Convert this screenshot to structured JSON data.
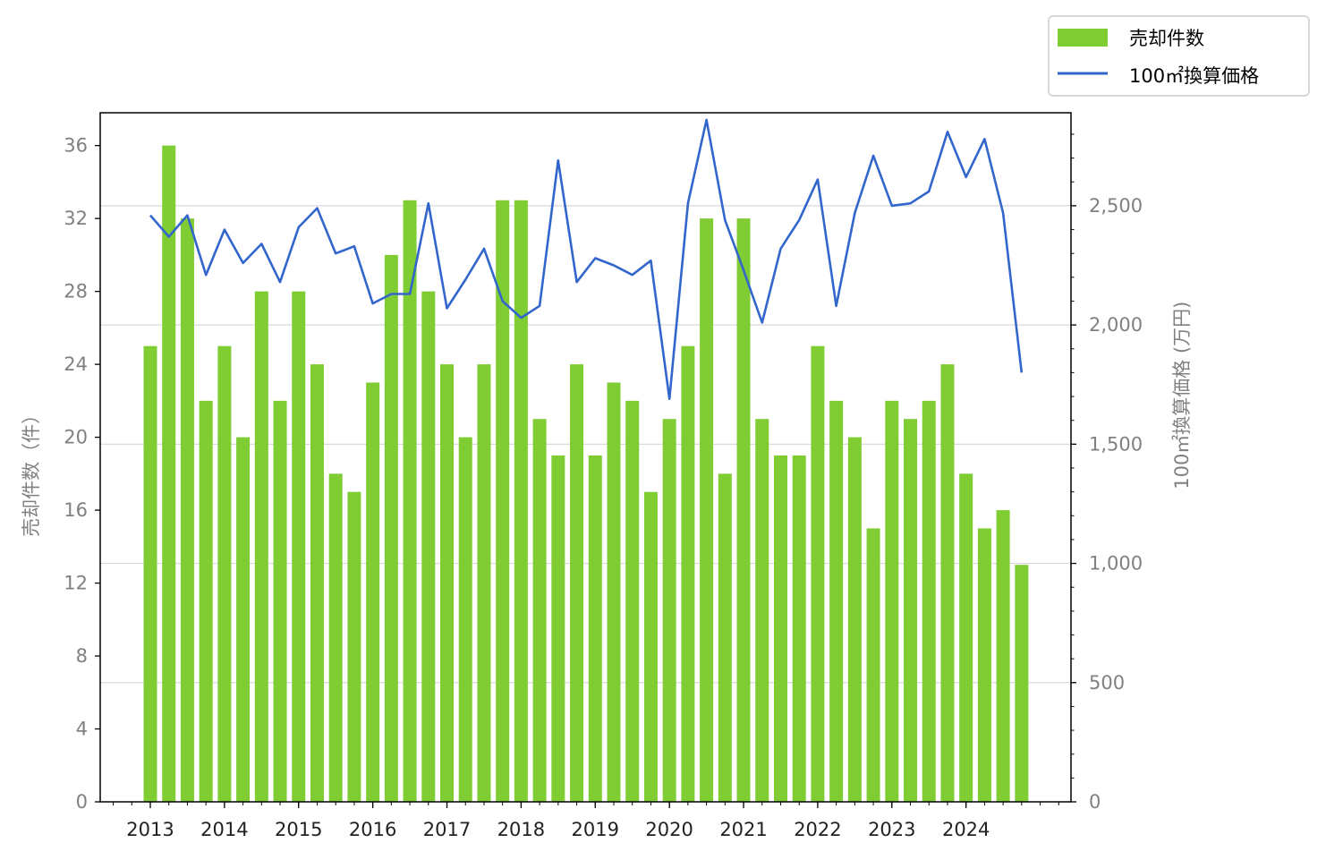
{
  "chart_data": {
    "type": "bar",
    "x_ticks": [
      "2013",
      "2014",
      "2015",
      "2016",
      "2017",
      "2018",
      "2019",
      "2020",
      "2021",
      "2022",
      "2023",
      "2024"
    ],
    "y_left": {
      "label": "売却件数（件）",
      "lim": [
        0,
        37.8
      ],
      "ticks": [
        0,
        4,
        8,
        12,
        16,
        20,
        24,
        28,
        32,
        36
      ]
    },
    "y_right": {
      "label": "100㎡換算価格 (万円)",
      "lim": [
        0,
        2890
      ],
      "ticks": [
        0,
        500,
        1000,
        1500,
        2000,
        2500
      ],
      "tick_labels": [
        "0",
        "500",
        "1,000",
        "1,500",
        "2,000",
        "2,500"
      ]
    },
    "grid": "horizontal-right-axis",
    "legend": {
      "placement": "top-right-outside"
    },
    "series": [
      {
        "name": "売却件数",
        "kind": "bar",
        "axis": "left",
        "color": "#7fcc33",
        "values": [
          25,
          36,
          32,
          22,
          25,
          20,
          28,
          22,
          28,
          24,
          18,
          17,
          23,
          30,
          33,
          28,
          24,
          20,
          24,
          33,
          33,
          21,
          19,
          24,
          19,
          23,
          22,
          17,
          21,
          25,
          32,
          18,
          32,
          21,
          19,
          19,
          25,
          22,
          20,
          15,
          22,
          21,
          22,
          24,
          18,
          15,
          16,
          13
        ]
      },
      {
        "name": "100㎡換算価格",
        "kind": "line",
        "axis": "right",
        "color": "#3366cc",
        "values": [
          2460,
          2370,
          2460,
          2210,
          2400,
          2260,
          2340,
          2180,
          2410,
          2490,
          2300,
          2330,
          2090,
          2130,
          2130,
          2510,
          2070,
          2190,
          2320,
          2100,
          2030,
          2080,
          2690,
          2180,
          2280,
          2250,
          2210,
          2270,
          1690,
          2510,
          2860,
          2440,
          2230,
          2010,
          2320,
          2440,
          2610,
          2080,
          2470,
          2710,
          2500,
          2510,
          2560,
          2810,
          2620,
          2780,
          2470,
          1800
        ]
      }
    ]
  }
}
